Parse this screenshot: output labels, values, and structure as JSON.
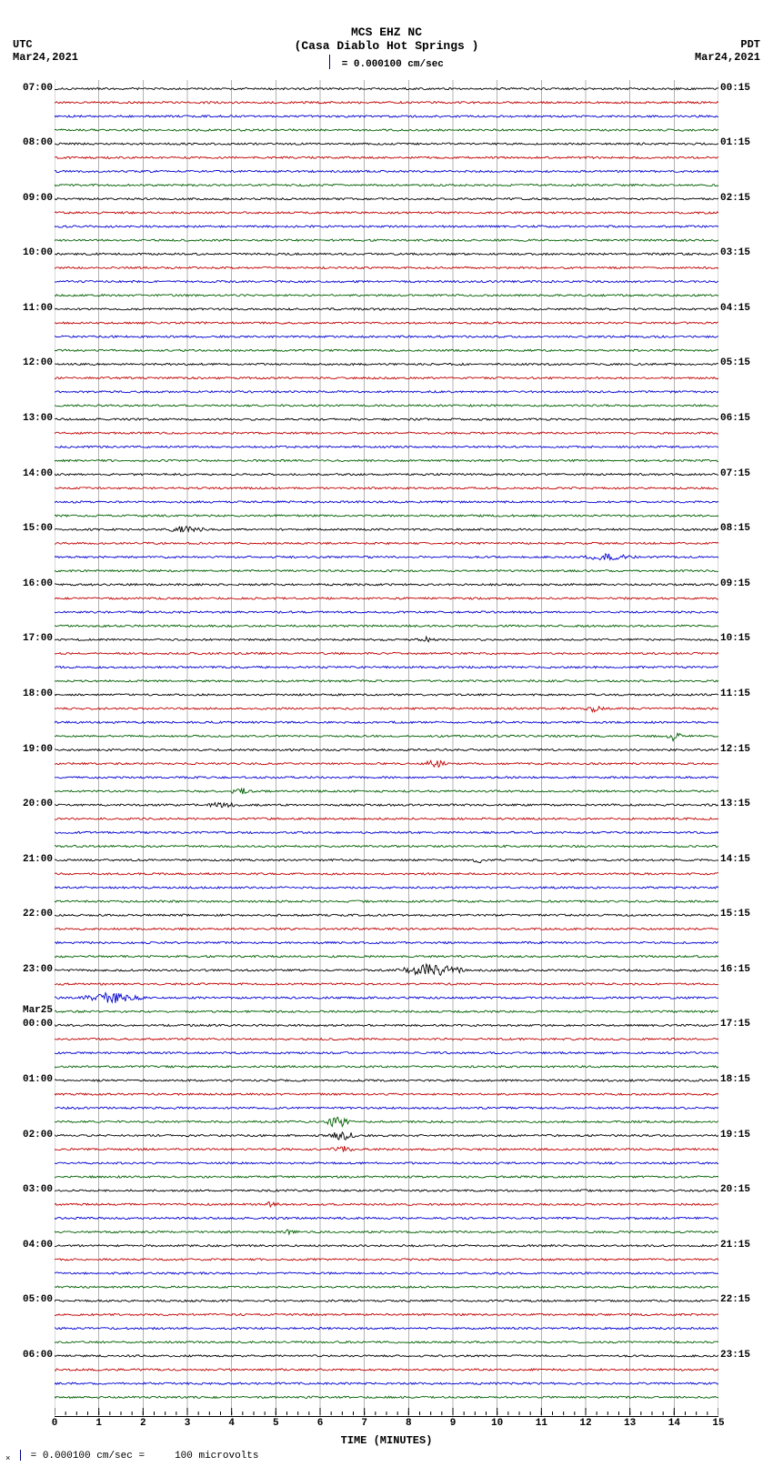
{
  "header": {
    "title_line1": "MCS EHZ NC",
    "title_line2": "(Casa Diablo Hot Springs )",
    "scale_text": "= 0.000100 cm/sec"
  },
  "tz_left": {
    "label": "UTC",
    "date": "Mar24,2021"
  },
  "tz_right": {
    "label": "PDT",
    "date": "Mar24,2021"
  },
  "xaxis": {
    "label": "TIME (MINUTES)",
    "min": 0,
    "max": 15,
    "major_ticks": [
      0,
      1,
      2,
      3,
      4,
      5,
      6,
      7,
      8,
      9,
      10,
      11,
      12,
      13,
      14,
      15
    ],
    "minor_per_major": 4
  },
  "plot": {
    "background": "#ffffff",
    "gridline_color": "#808080",
    "trace_colors": [
      "#000000",
      "#c00000",
      "#0000d0",
      "#006000"
    ],
    "n_traces": 96,
    "trace_amp_base": 1.1,
    "noise_seed": 42,
    "events": [
      {
        "trace": 32,
        "x": 3.0,
        "amp": 3.2,
        "width": 0.5
      },
      {
        "trace": 34,
        "x": 12.5,
        "amp": 2.8,
        "width": 0.7
      },
      {
        "trace": 40,
        "x": 8.4,
        "amp": 2.4,
        "width": 0.3
      },
      {
        "trace": 45,
        "x": 12.2,
        "amp": 4.5,
        "width": 0.25
      },
      {
        "trace": 47,
        "x": 14.0,
        "amp": 5.0,
        "width": 0.2
      },
      {
        "trace": 49,
        "x": 8.6,
        "amp": 3.5,
        "width": 0.3
      },
      {
        "trace": 51,
        "x": 4.2,
        "amp": 3.0,
        "width": 0.3
      },
      {
        "trace": 52,
        "x": 3.8,
        "amp": 2.8,
        "width": 0.4
      },
      {
        "trace": 56,
        "x": 9.6,
        "amp": 2.2,
        "width": 0.2
      },
      {
        "trace": 64,
        "x": 8.5,
        "amp": 6.5,
        "width": 0.9
      },
      {
        "trace": 66,
        "x": 1.3,
        "amp": 5.5,
        "width": 0.8
      },
      {
        "trace": 75,
        "x": 6.4,
        "amp": 7.0,
        "width": 0.3
      },
      {
        "trace": 76,
        "x": 6.5,
        "amp": 5.0,
        "width": 0.4
      },
      {
        "trace": 77,
        "x": 6.5,
        "amp": 3.0,
        "width": 0.3
      },
      {
        "trace": 81,
        "x": 4.9,
        "amp": 2.5,
        "width": 0.2
      },
      {
        "trace": 83,
        "x": 5.3,
        "amp": 2.2,
        "width": 0.2
      }
    ],
    "left_labels": [
      {
        "trace": 0,
        "text": "07:00"
      },
      {
        "trace": 4,
        "text": "08:00"
      },
      {
        "trace": 8,
        "text": "09:00"
      },
      {
        "trace": 12,
        "text": "10:00"
      },
      {
        "trace": 16,
        "text": "11:00"
      },
      {
        "trace": 20,
        "text": "12:00"
      },
      {
        "trace": 24,
        "text": "13:00"
      },
      {
        "trace": 28,
        "text": "14:00"
      },
      {
        "trace": 32,
        "text": "15:00"
      },
      {
        "trace": 36,
        "text": "16:00"
      },
      {
        "trace": 40,
        "text": "17:00"
      },
      {
        "trace": 44,
        "text": "18:00"
      },
      {
        "trace": 48,
        "text": "19:00"
      },
      {
        "trace": 52,
        "text": "20:00"
      },
      {
        "trace": 56,
        "text": "21:00"
      },
      {
        "trace": 60,
        "text": "22:00"
      },
      {
        "trace": 64,
        "text": "23:00"
      },
      {
        "trace": 67,
        "text": "Mar25"
      },
      {
        "trace": 68,
        "text": "00:00"
      },
      {
        "trace": 72,
        "text": "01:00"
      },
      {
        "trace": 76,
        "text": "02:00"
      },
      {
        "trace": 80,
        "text": "03:00"
      },
      {
        "trace": 84,
        "text": "04:00"
      },
      {
        "trace": 88,
        "text": "05:00"
      },
      {
        "trace": 92,
        "text": "06:00"
      }
    ],
    "right_labels": [
      {
        "trace": 0,
        "text": "00:15"
      },
      {
        "trace": 4,
        "text": "01:15"
      },
      {
        "trace": 8,
        "text": "02:15"
      },
      {
        "trace": 12,
        "text": "03:15"
      },
      {
        "trace": 16,
        "text": "04:15"
      },
      {
        "trace": 20,
        "text": "05:15"
      },
      {
        "trace": 24,
        "text": "06:15"
      },
      {
        "trace": 28,
        "text": "07:15"
      },
      {
        "trace": 32,
        "text": "08:15"
      },
      {
        "trace": 36,
        "text": "09:15"
      },
      {
        "trace": 40,
        "text": "10:15"
      },
      {
        "trace": 44,
        "text": "11:15"
      },
      {
        "trace": 48,
        "text": "12:15"
      },
      {
        "trace": 52,
        "text": "13:15"
      },
      {
        "trace": 56,
        "text": "14:15"
      },
      {
        "trace": 60,
        "text": "15:15"
      },
      {
        "trace": 64,
        "text": "16:15"
      },
      {
        "trace": 68,
        "text": "17:15"
      },
      {
        "trace": 72,
        "text": "18:15"
      },
      {
        "trace": 76,
        "text": "19:15"
      },
      {
        "trace": 80,
        "text": "20:15"
      },
      {
        "trace": 84,
        "text": "21:15"
      },
      {
        "trace": 88,
        "text": "22:15"
      },
      {
        "trace": 92,
        "text": "23:15"
      }
    ]
  },
  "footer": {
    "text_prefix": "= 0.000100 cm/sec =",
    "text_suffix": "100 microvolts"
  }
}
